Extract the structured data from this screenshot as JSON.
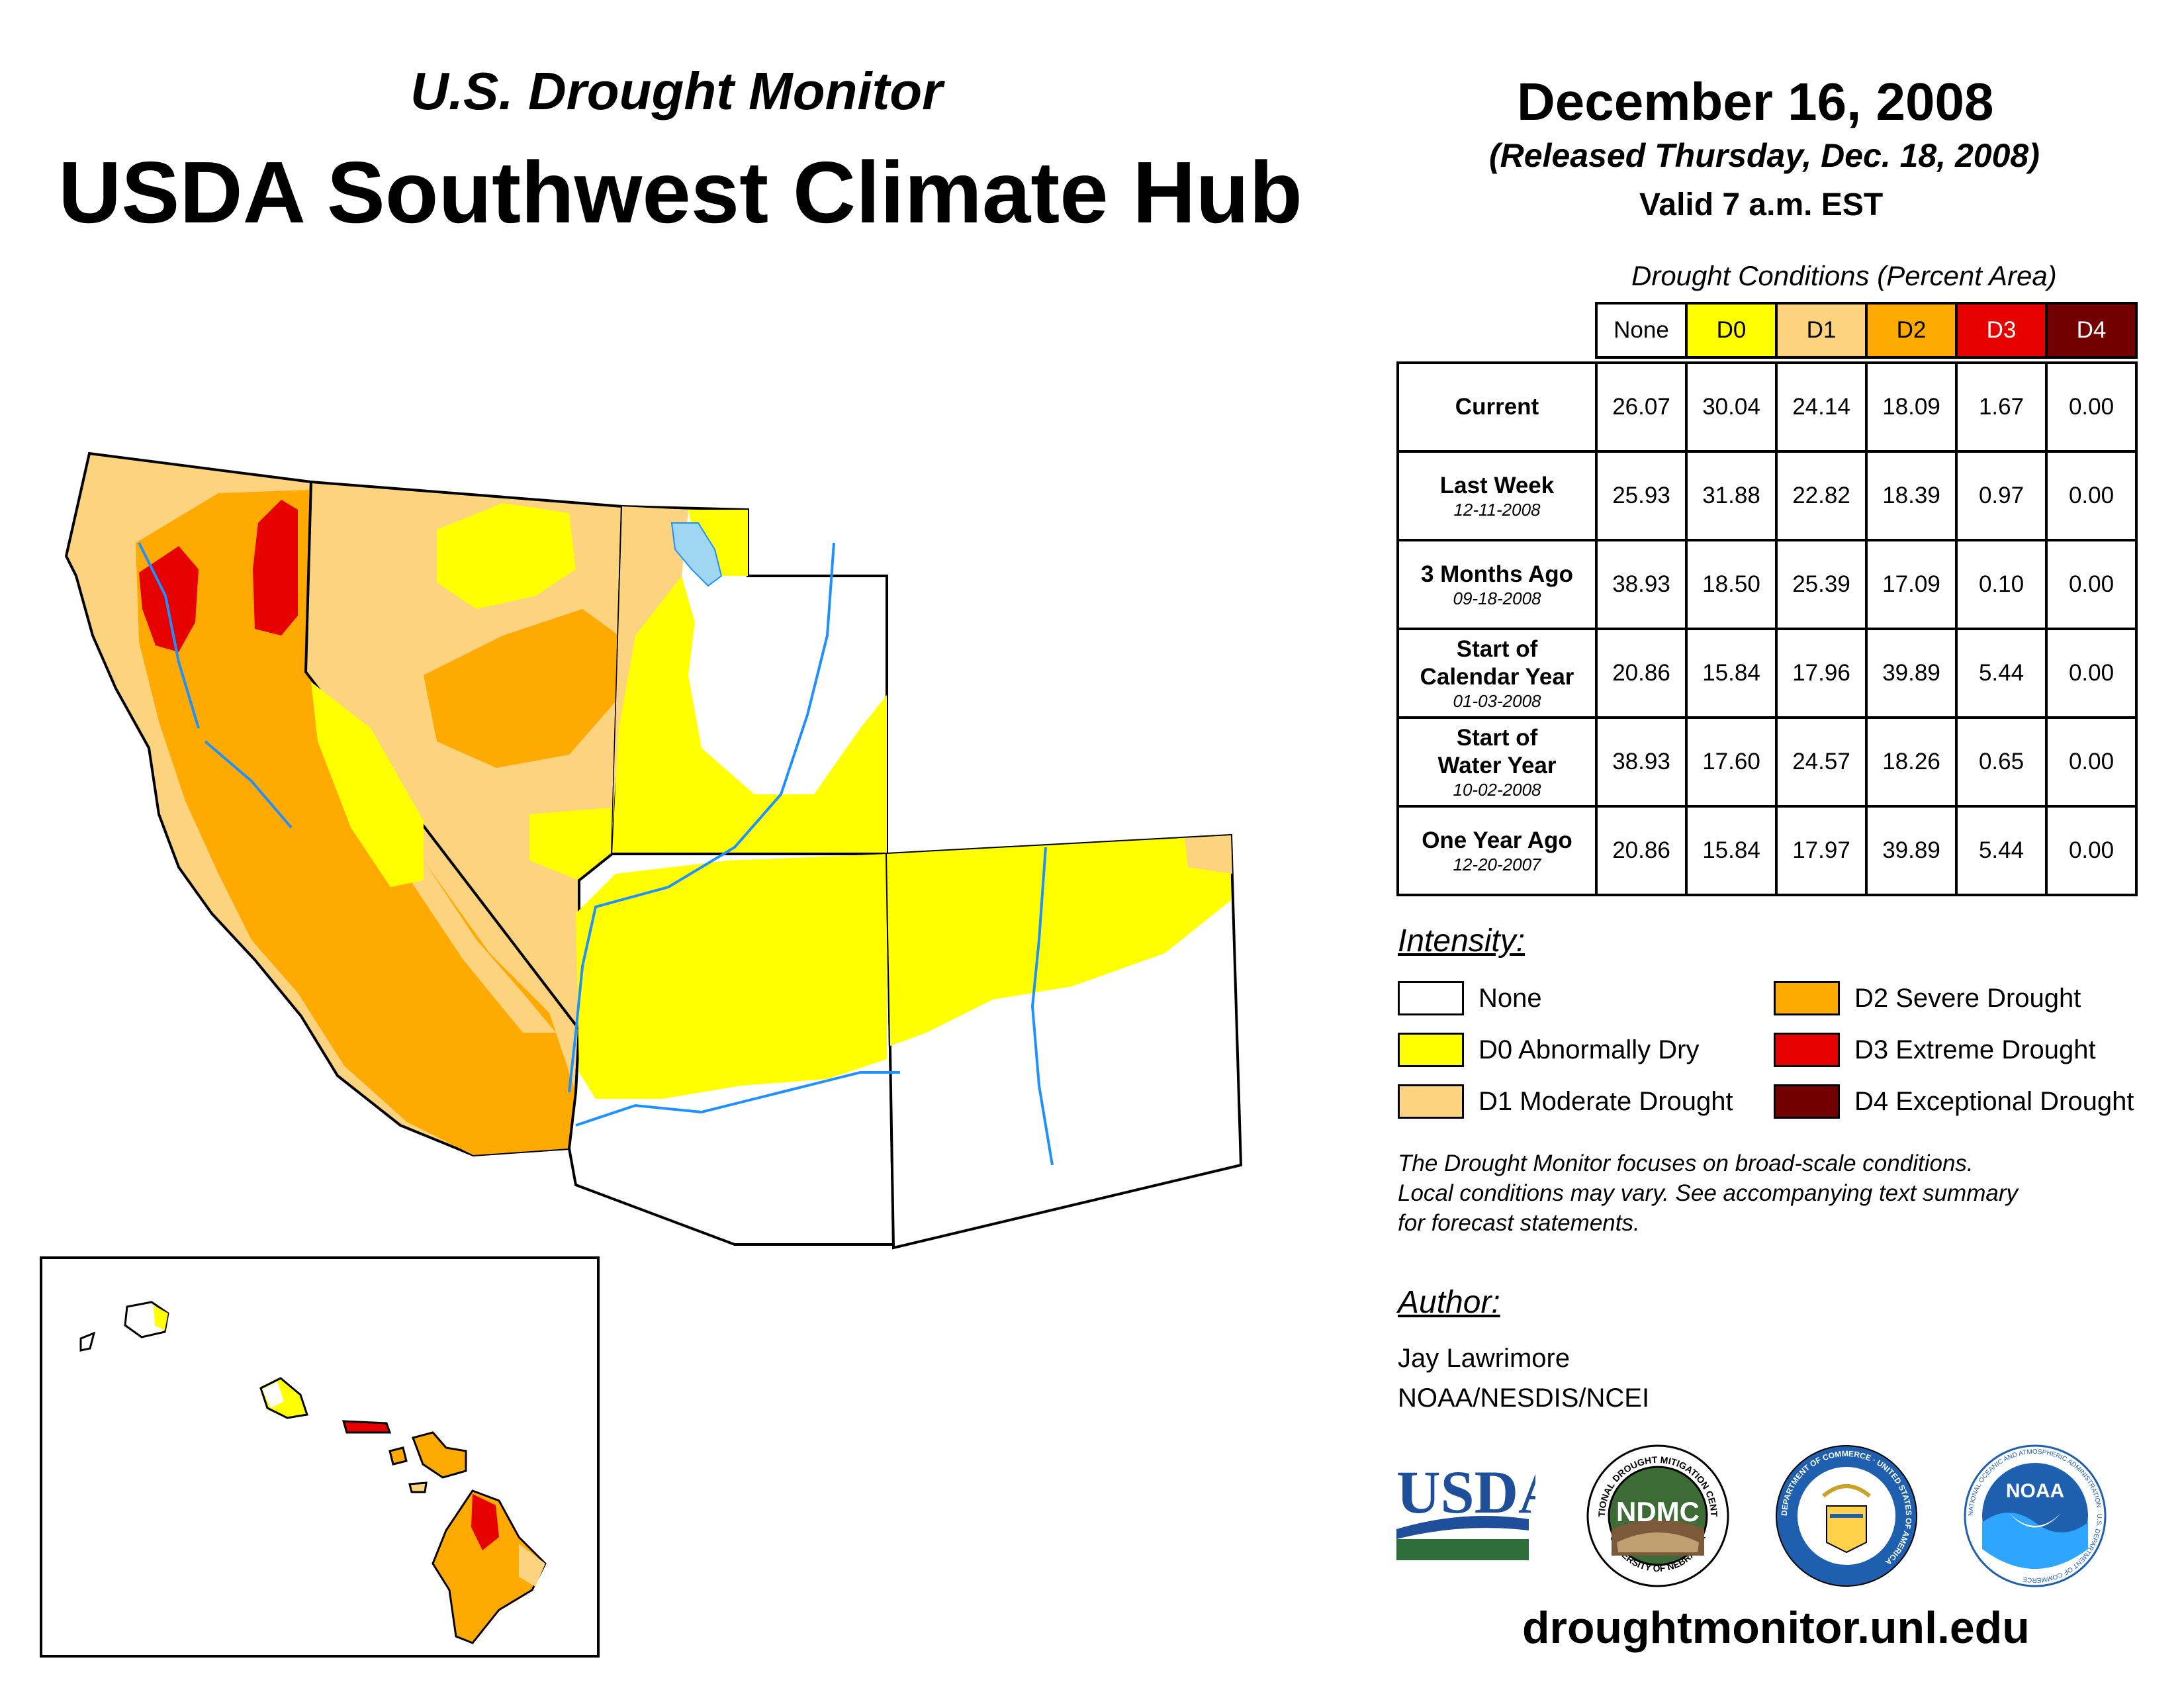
{
  "header": {
    "subtitle": "U.S. Drought Monitor",
    "title": "USDA Southwest Climate Hub",
    "date": "December 16, 2008",
    "released": "(Released Thursday, Dec. 18, 2008)",
    "valid": "Valid 7 a.m. EST"
  },
  "table": {
    "caption": "Drought Conditions (Percent Area)",
    "columns": [
      {
        "label": "None",
        "bg": "#ffffff",
        "fg": "#000000"
      },
      {
        "label": "D0",
        "bg": "#ffff00",
        "fg": "#000000"
      },
      {
        "label": "D1",
        "bg": "#fcd37f",
        "fg": "#000000"
      },
      {
        "label": "D2",
        "bg": "#ffaa00",
        "fg": "#000000"
      },
      {
        "label": "D3",
        "bg": "#e60000",
        "fg": "#ffffff"
      },
      {
        "label": "D4",
        "bg": "#730000",
        "fg": "#ffffff"
      }
    ],
    "rows": [
      {
        "label": [
          "Current"
        ],
        "date": "",
        "values": [
          "26.07",
          "30.04",
          "24.14",
          "18.09",
          "1.67",
          "0.00"
        ]
      },
      {
        "label": [
          "Last Week"
        ],
        "date": "12-11-2008",
        "values": [
          "25.93",
          "31.88",
          "22.82",
          "18.39",
          "0.97",
          "0.00"
        ]
      },
      {
        "label": [
          "3 Months Ago"
        ],
        "date": "09-18-2008",
        "values": [
          "38.93",
          "18.50",
          "25.39",
          "17.09",
          "0.10",
          "0.00"
        ]
      },
      {
        "label": [
          "Start of",
          "Calendar Year"
        ],
        "date": "01-03-2008",
        "values": [
          "20.86",
          "15.84",
          "17.96",
          "39.89",
          "5.44",
          "0.00"
        ]
      },
      {
        "label": [
          "Start of",
          "Water Year"
        ],
        "date": "10-02-2008",
        "values": [
          "38.93",
          "17.60",
          "24.57",
          "18.26",
          "0.65",
          "0.00"
        ]
      },
      {
        "label": [
          "One Year Ago"
        ],
        "date": "12-20-2007",
        "values": [
          "20.86",
          "15.84",
          "17.97",
          "39.89",
          "5.44",
          "0.00"
        ]
      }
    ]
  },
  "legend": {
    "title": "Intensity:",
    "items": [
      {
        "label": "None",
        "color": "#ffffff"
      },
      {
        "label": "D0 Abnormally Dry",
        "color": "#ffff00"
      },
      {
        "label": "D1 Moderate Drought",
        "color": "#fcd37f"
      },
      {
        "label": "D2 Severe Drought",
        "color": "#ffaa00"
      },
      {
        "label": "D3 Extreme Drought",
        "color": "#e60000"
      },
      {
        "label": "D4 Exceptional Drought",
        "color": "#730000"
      }
    ]
  },
  "note": [
    "The Drought Monitor focuses on broad-scale conditions.",
    "Local conditions may vary. See accompanying text summary",
    "for forecast statements."
  ],
  "author": {
    "title": "Author:",
    "name": "Jay Lawrimore",
    "org": "NOAA/NESDIS/NCEI"
  },
  "logos": {
    "usda": "USDA",
    "ndmc": "NDMC",
    "ndmc_ring_top": "NATIONAL DROUGHT MITIGATION CENTER",
    "ndmc_ring_bottom": "UNIVERSITY OF NEBRASKA",
    "doc_ring": "DEPARTMENT OF COMMERCE · UNITED STATES OF AMERICA",
    "noaa": "NOAA",
    "noaa_ring": "NATIONAL OCEANIC AND ATMOSPHERIC ADMINISTRATION · U.S. DEPARTMENT OF COMMERCE"
  },
  "url": "droughtmonitor.unl.edu",
  "colors": {
    "water": "#9fd6f2",
    "river": "#1e90ff",
    "d0": "#ffff00",
    "d1": "#fcd37f",
    "d2": "#ffaa00",
    "d3": "#e60000",
    "d4": "#730000"
  }
}
